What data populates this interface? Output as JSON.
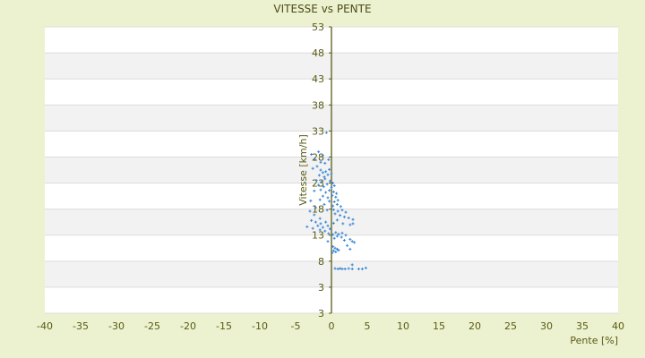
{
  "chart_data": {
    "type": "scatter",
    "title": "VITESSE vs PENTE",
    "xlabel": "Pente [%]",
    "ylabel": "Vitesse [km/h]",
    "xlim": [
      -40,
      40
    ],
    "ylim": [
      -2,
      53
    ],
    "x_ticks": [
      "-40",
      "-35",
      "-30",
      "-25",
      "-20",
      "-15",
      "-10",
      "-5",
      "0",
      "5",
      "10",
      "15",
      "20",
      "25",
      "30",
      "35",
      "40"
    ],
    "y_ticks": [
      "53",
      "48",
      "43",
      "38",
      "33",
      "28",
      "23",
      "18",
      "13",
      "8",
      "3",
      "3"
    ],
    "grid": true,
    "band_colors": [
      "#ffffff",
      "#f2f2f2"
    ],
    "point_color": "#3a87d6",
    "axis_color": "#5a5a14",
    "points": [
      [
        -2.8,
        28.5
      ],
      [
        -2.3,
        27.5
      ],
      [
        -1.8,
        29
      ],
      [
        -1.2,
        28.3
      ],
      [
        -0.7,
        32.7
      ],
      [
        -1.5,
        27
      ],
      [
        -2.0,
        26.2
      ],
      [
        -0.9,
        26.8
      ],
      [
        -0.4,
        27.5
      ],
      [
        -2.6,
        25.8
      ],
      [
        -1.5,
        25.5
      ],
      [
        -1.2,
        25
      ],
      [
        -0.8,
        25.2
      ],
      [
        -0.3,
        25.6
      ],
      [
        -1.7,
        24.5
      ],
      [
        -1.0,
        24.2
      ],
      [
        -0.5,
        24.6
      ],
      [
        0,
        24.8
      ],
      [
        -2.1,
        23.5
      ],
      [
        -1.4,
        23.2
      ],
      [
        -0.9,
        23.8
      ],
      [
        -0.2,
        23.4
      ],
      [
        0.2,
        23
      ],
      [
        -1.8,
        22.6
      ],
      [
        -1.1,
        22.3
      ],
      [
        -0.6,
        22.8
      ],
      [
        0,
        22.2
      ],
      [
        0.4,
        22.5
      ],
      [
        -2.4,
        21.5
      ],
      [
        -1.5,
        21.7
      ],
      [
        -0.8,
        21.2
      ],
      [
        -0.3,
        21.6
      ],
      [
        0.3,
        21.3
      ],
      [
        0.7,
        21
      ],
      [
        -1.2,
        20.5
      ],
      [
        -0.5,
        20.2
      ],
      [
        0.1,
        20.6
      ],
      [
        0.6,
        20.3
      ],
      [
        -2.9,
        19.6
      ],
      [
        -1.6,
        19.8
      ],
      [
        -0.3,
        19.5
      ],
      [
        0.4,
        19.4
      ],
      [
        0.9,
        19.7
      ],
      [
        -1.0,
        18.9
      ],
      [
        0.2,
        18.6
      ],
      [
        0.8,
        18.9
      ],
      [
        1.3,
        18.5
      ],
      [
        -2.2,
        18.3
      ],
      [
        -3.0,
        17.6
      ],
      [
        -0.6,
        17.8
      ],
      [
        0.3,
        17.9
      ],
      [
        0.9,
        17.6
      ],
      [
        1.5,
        17.8
      ],
      [
        2.0,
        17.4
      ],
      [
        0.5,
        17.1
      ],
      [
        1.2,
        16.8
      ],
      [
        1.8,
        16.5
      ],
      [
        2.4,
        16.3
      ],
      [
        3.0,
        16.0
      ],
      [
        -2.4,
        16.9
      ],
      [
        -1.6,
        16.2
      ],
      [
        -2.8,
        15.8
      ],
      [
        -2.2,
        15.5
      ],
      [
        -1.5,
        15.2
      ],
      [
        -0.8,
        15.5
      ],
      [
        -1.9,
        14.8
      ],
      [
        -1.2,
        14.5
      ],
      [
        -0.5,
        14.8
      ],
      [
        -2.6,
        14.3
      ],
      [
        -1.6,
        14.0
      ],
      [
        -0.9,
        13.8
      ],
      [
        -0.2,
        14.2
      ],
      [
        0.3,
        15.3
      ],
      [
        0.8,
        15.9
      ],
      [
        1.6,
        15.2
      ],
      [
        2.6,
        15.0
      ],
      [
        3.0,
        15.2
      ],
      [
        -3.4,
        14.6
      ],
      [
        -0.4,
        13.3
      ],
      [
        0.2,
        13.1
      ],
      [
        0.6,
        13.5
      ],
      [
        1.0,
        13.2
      ],
      [
        1.5,
        13.4
      ],
      [
        0.8,
        12.8
      ],
      [
        1.4,
        12.6
      ],
      [
        0.4,
        12.4
      ],
      [
        2.0,
        13.0
      ],
      [
        2.6,
        12.2
      ],
      [
        2.9,
        11.8
      ],
      [
        2.2,
        11.0
      ],
      [
        1.8,
        12.0
      ],
      [
        3.2,
        11.6
      ],
      [
        -0.5,
        11.8
      ],
      [
        0.2,
        10.8
      ],
      [
        0.5,
        10.5
      ],
      [
        0.8,
        10.3
      ],
      [
        0.3,
        10.0
      ],
      [
        0.6,
        9.8
      ],
      [
        1.0,
        10.1
      ],
      [
        0.1,
        9.6
      ],
      [
        2.6,
        10.3
      ],
      [
        0.5,
        6.6
      ],
      [
        0.9,
        6.5
      ],
      [
        1.2,
        6.6
      ],
      [
        1.5,
        6.5
      ],
      [
        1.9,
        6.5
      ],
      [
        2.4,
        6.6
      ],
      [
        2.9,
        6.5
      ],
      [
        3.8,
        6.5
      ],
      [
        4.3,
        6.5
      ],
      [
        4.8,
        6.7
      ],
      [
        2.9,
        7.3
      ]
    ]
  }
}
